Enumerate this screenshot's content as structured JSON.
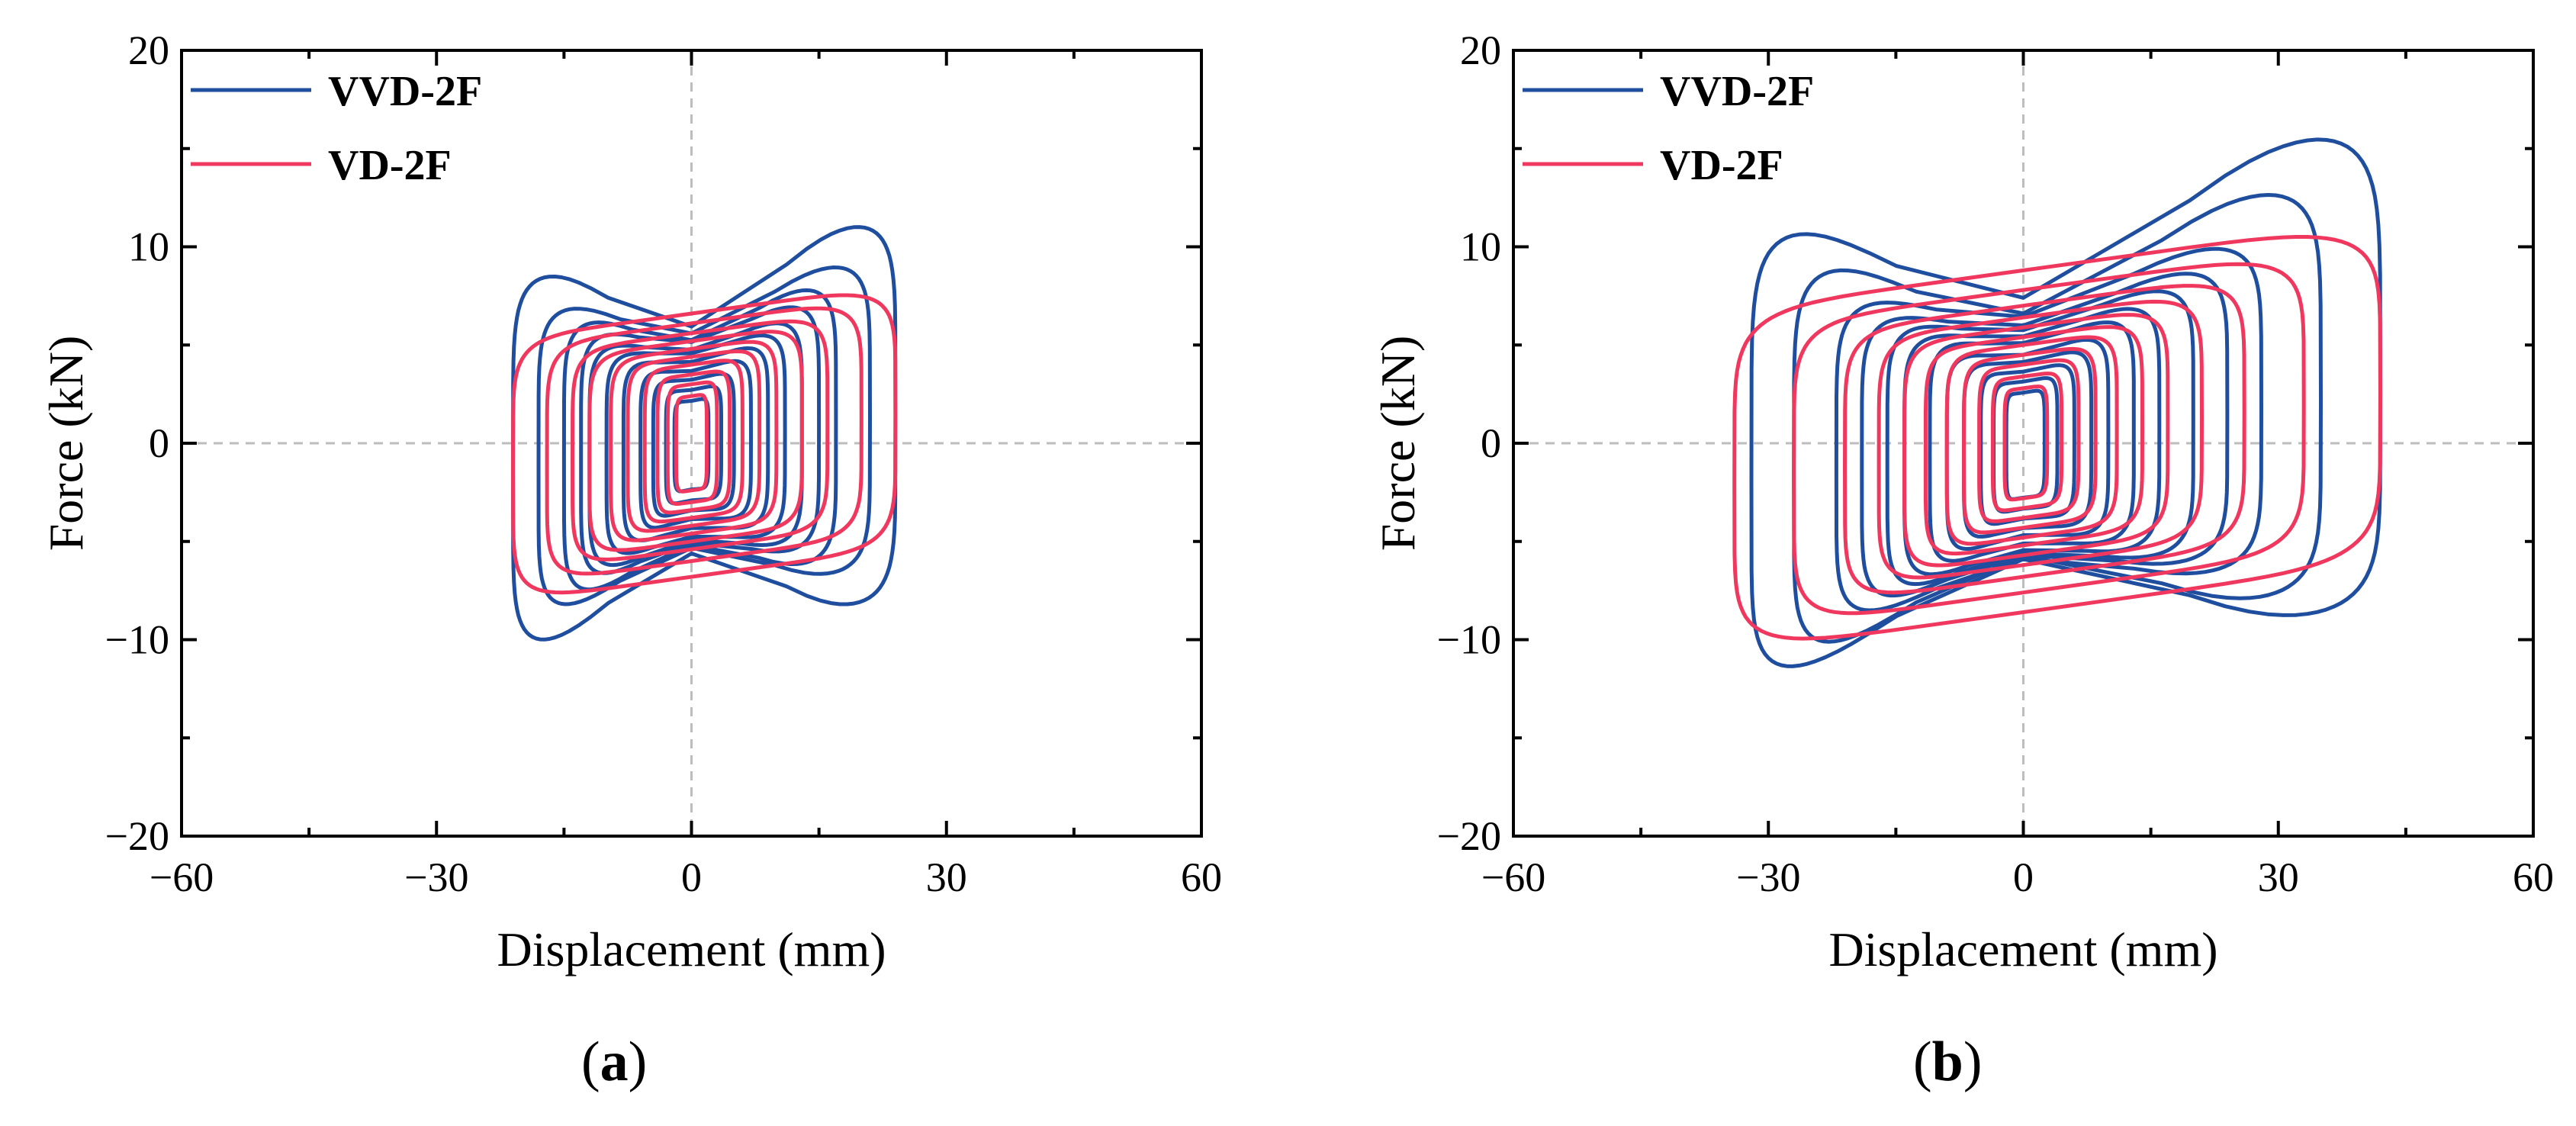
{
  "chart_data": [
    {
      "type": "line",
      "panel_label": "a",
      "title": "",
      "xlabel": "Displacement (mm)",
      "ylabel": "Force (kN)",
      "xlim": [
        -60,
        60
      ],
      "ylim": [
        -20,
        20
      ],
      "xticks": [
        -60,
        -30,
        0,
        30,
        60
      ],
      "yticks": [
        -20,
        -10,
        0,
        10,
        20
      ],
      "xtick_labels": [
        "−60",
        "−30",
        "0",
        "30",
        "60"
      ],
      "ytick_labels": [
        "−20",
        "−10",
        "0",
        "10",
        "20"
      ],
      "grid": false,
      "zero_lines": true,
      "legend": "top-left",
      "series": [
        {
          "name": "VVD-2F",
          "color": "#1f4e9e",
          "loops": [
            {
              "xmax": 24,
              "ymax": 10.8,
              "xmin": -21,
              "ymin": -10.2,
              "pinch": 0.45,
              "skew": 1.0
            },
            {
              "xmax": 21,
              "ymax": 8.6,
              "xmin": -18,
              "ymin": -8.2,
              "pinch": 0.35,
              "skew": 1.0
            },
            {
              "xmax": 17,
              "ymax": 7.5,
              "xmin": -15,
              "ymin": -7.4,
              "pinch": 0.3,
              "skew": 1.0
            },
            {
              "xmax": 15,
              "ymax": 6.6,
              "xmin": -13,
              "ymin": -6.5,
              "pinch": 0.22,
              "skew": 1.0
            },
            {
              "xmax": 13,
              "ymax": 5.8,
              "xmin": -12,
              "ymin": -6.0,
              "pinch": 0.18,
              "skew": 1.0
            },
            {
              "xmax": 11,
              "ymax": 5.2,
              "xmin": -10,
              "ymin": -5.4,
              "pinch": 0.12,
              "skew": 1.0
            },
            {
              "xmax": 9,
              "ymax": 4.6,
              "xmin": -8,
              "ymin": -4.8,
              "pinch": 0.1,
              "skew": 1.0
            },
            {
              "xmax": 7,
              "ymax": 4.0,
              "xmin": -6,
              "ymin": -4.2,
              "pinch": 0.08,
              "skew": 1.0
            },
            {
              "xmax": 5,
              "ymax": 3.4,
              "xmin": -4.5,
              "ymin": -3.6,
              "pinch": 0.05,
              "skew": 1.0
            },
            {
              "xmax": 3.5,
              "ymax": 2.8,
              "xmin": -3,
              "ymin": -3.0,
              "pinch": 0.03,
              "skew": 1.0
            },
            {
              "xmax": 2,
              "ymax": 2.2,
              "xmin": -2,
              "ymin": -2.4,
              "pinch": 0.02,
              "skew": 1.0
            }
          ]
        },
        {
          "name": "VD-2F",
          "color": "#f0385f",
          "loops": [
            {
              "xmax": 24,
              "ymax": 6.6,
              "xmin": -21,
              "ymin": -6.8,
              "pinch": 0,
              "skew": 1.0
            },
            {
              "xmax": 20,
              "ymax": 6.1,
              "xmin": -17,
              "ymin": -6.0,
              "pinch": 0,
              "skew": 1.0
            },
            {
              "xmax": 16,
              "ymax": 5.6,
              "xmin": -14,
              "ymin": -5.4,
              "pinch": 0,
              "skew": 1.0
            },
            {
              "xmax": 13,
              "ymax": 5.2,
              "xmin": -12,
              "ymin": -5.0,
              "pinch": 0,
              "skew": 1.0
            },
            {
              "xmax": 10,
              "ymax": 4.8,
              "xmin": -9.5,
              "ymin": -4.6,
              "pinch": 0,
              "skew": 1.0
            },
            {
              "xmax": 8,
              "ymax": 4.4,
              "xmin": -7.5,
              "ymin": -4.2,
              "pinch": 0,
              "skew": 1.0
            },
            {
              "xmax": 6,
              "ymax": 4.0,
              "xmin": -5.5,
              "ymin": -3.8,
              "pinch": 0,
              "skew": 1.0
            },
            {
              "xmax": 4.5,
              "ymax": 3.5,
              "xmin": -4,
              "ymin": -3.4,
              "pinch": 0,
              "skew": 1.0
            },
            {
              "xmax": 3,
              "ymax": 3.0,
              "xmin": -2.8,
              "ymin": -3.0,
              "pinch": 0,
              "skew": 1.0
            },
            {
              "xmax": 1.8,
              "ymax": 2.4,
              "xmin": -1.8,
              "ymin": -2.4,
              "pinch": 0,
              "skew": 1.0
            }
          ]
        }
      ]
    },
    {
      "type": "line",
      "panel_label": "b",
      "title": "",
      "xlabel": "Displacement (mm)",
      "ylabel": "Force (kN)",
      "xlim": [
        -60,
        60
      ],
      "ylim": [
        -20,
        20
      ],
      "xticks": [
        -60,
        -30,
        0,
        30,
        60
      ],
      "yticks": [
        -20,
        -10,
        0,
        10,
        20
      ],
      "xtick_labels": [
        "−60",
        "−30",
        "0",
        "30",
        "60"
      ],
      "ytick_labels": [
        "−20",
        "−10",
        "0",
        "10",
        "20"
      ],
      "grid": false,
      "zero_lines": true,
      "legend": "top-left",
      "series": [
        {
          "name": "VVD-2F",
          "color": "#1f4e9e",
          "loops": [
            {
              "xmax": 42,
              "ymax": 14.8,
              "xmin": -32,
              "ymin": -11.8,
              "pinch": 0.5,
              "skew": 1.0
            },
            {
              "xmax": 35,
              "ymax": 12.0,
              "xmin": -27,
              "ymin": -10.4,
              "pinch": 0.45,
              "skew": 1.0
            },
            {
              "xmax": 28,
              "ymax": 9.2,
              "xmin": -22,
              "ymin": -8.4,
              "pinch": 0.3,
              "skew": 1.0
            },
            {
              "xmax": 24,
              "ymax": 8.0,
              "xmin": -19,
              "ymin": -7.6,
              "pinch": 0.25,
              "skew": 1.0
            },
            {
              "xmax": 20,
              "ymax": 7.2,
              "xmin": -16,
              "ymin": -7.0,
              "pinch": 0.2,
              "skew": 1.0
            },
            {
              "xmax": 16,
              "ymax": 6.4,
              "xmin": -14,
              "ymin": -6.4,
              "pinch": 0.15,
              "skew": 1.0
            },
            {
              "xmax": 13,
              "ymax": 5.8,
              "xmin": -11,
              "ymin": -5.8,
              "pinch": 0.12,
              "skew": 1.0
            },
            {
              "xmax": 10,
              "ymax": 5.0,
              "xmin": -9,
              "ymin": -5.2,
              "pinch": 0.1,
              "skew": 1.0
            },
            {
              "xmax": 8,
              "ymax": 4.4,
              "xmin": -7,
              "ymin": -4.6,
              "pinch": 0.06,
              "skew": 1.0
            },
            {
              "xmax": 6,
              "ymax": 3.8,
              "xmin": -5,
              "ymin": -4.0,
              "pinch": 0.04,
              "skew": 1.0
            },
            {
              "xmax": 4,
              "ymax": 3.2,
              "xmin": -3.5,
              "ymin": -3.4,
              "pinch": 0.02,
              "skew": 1.0
            },
            {
              "xmax": 2.5,
              "ymax": 2.6,
              "xmin": -2,
              "ymin": -2.8,
              "pinch": 0.01,
              "skew": 1.0
            }
          ]
        },
        {
          "name": "VD-2F",
          "color": "#f0385f",
          "loops": [
            {
              "xmax": 42,
              "ymax": 8.8,
              "xmin": -34,
              "ymin": -8.6,
              "pinch": 0,
              "skew": 1.0
            },
            {
              "xmax": 33,
              "ymax": 7.8,
              "xmin": -27,
              "ymin": -7.6,
              "pinch": 0,
              "skew": 1.0
            },
            {
              "xmax": 26,
              "ymax": 7.0,
              "xmin": -21,
              "ymin": -6.8,
              "pinch": 0,
              "skew": 1.0
            },
            {
              "xmax": 21,
              "ymax": 6.4,
              "xmin": -17,
              "ymin": -6.2,
              "pinch": 0,
              "skew": 1.0
            },
            {
              "xmax": 17,
              "ymax": 5.9,
              "xmin": -14,
              "ymin": -5.7,
              "pinch": 0,
              "skew": 1.0
            },
            {
              "xmax": 14,
              "ymax": 5.4,
              "xmin": -11.5,
              "ymin": -5.2,
              "pinch": 0,
              "skew": 1.0
            },
            {
              "xmax": 11,
              "ymax": 5.0,
              "xmin": -9,
              "ymin": -4.8,
              "pinch": 0,
              "skew": 1.0
            },
            {
              "xmax": 8.5,
              "ymax": 4.5,
              "xmin": -7,
              "ymin": -4.3,
              "pinch": 0,
              "skew": 1.0
            },
            {
              "xmax": 6.5,
              "ymax": 4.0,
              "xmin": -5.2,
              "ymin": -3.8,
              "pinch": 0,
              "skew": 1.0
            },
            {
              "xmax": 4.5,
              "ymax": 3.4,
              "xmin": -3.6,
              "ymin": -3.3,
              "pinch": 0,
              "skew": 1.0
            },
            {
              "xmax": 2.8,
              "ymax": 2.8,
              "xmin": -2.2,
              "ymin": -2.8,
              "pinch": 0,
              "skew": 1.0
            }
          ]
        }
      ]
    }
  ]
}
